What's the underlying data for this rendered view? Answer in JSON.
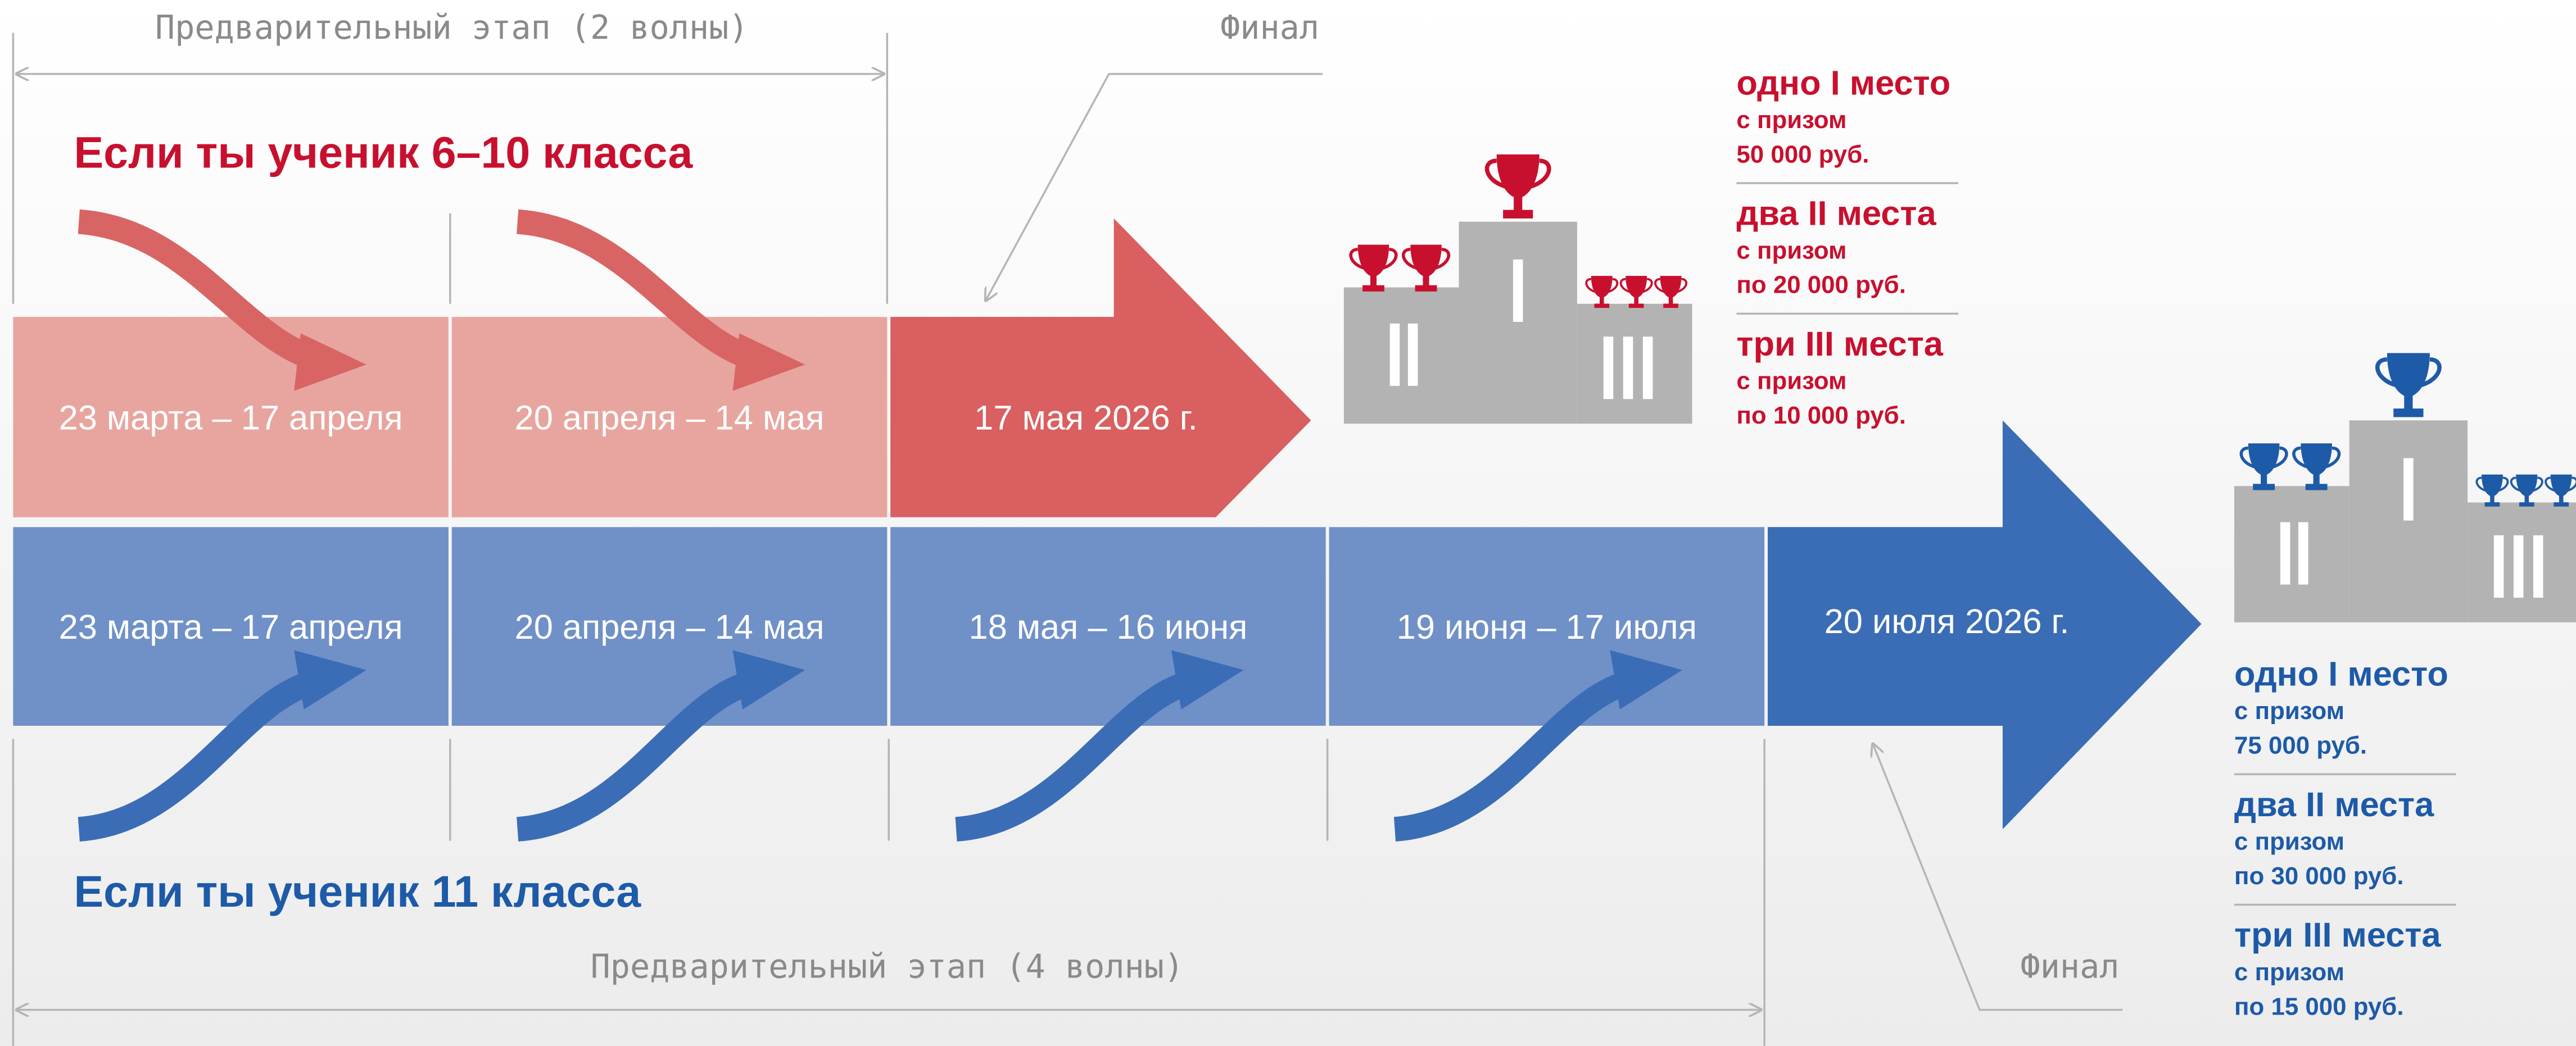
{
  "top_stage": {
    "label": "Предварительный этап (2 волны)",
    "final_label": "Финал"
  },
  "junior": {
    "heading": "Если ты ученик 6–10 класса",
    "waves": [
      "23 марта – 17 апреля",
      "20 апреля – 14 мая"
    ],
    "final_date": "17 мая 2026 г.",
    "prizes": [
      {
        "title": "одно I место",
        "lines": [
          "с призом",
          "50 000 руб."
        ]
      },
      {
        "title": "два II места",
        "lines": [
          "с призом",
          "по 20 000 руб."
        ]
      },
      {
        "title": "три III места",
        "lines": [
          "с призом",
          "по 10 000 руб."
        ]
      }
    ]
  },
  "senior": {
    "heading": "Если ты ученик 11 класса",
    "waves": [
      "23 марта – 17 апреля",
      "20 апреля – 14 мая",
      "18 мая – 16 июня",
      "19 июня – 17 июля"
    ],
    "final_date": "20 июля 2026 г.",
    "prizes": [
      {
        "title": "одно I место",
        "lines": [
          "с призом",
          "75 000 руб."
        ]
      },
      {
        "title": "два II места",
        "lines": [
          "с призом",
          "по 30 000 руб."
        ]
      },
      {
        "title": "три III места",
        "lines": [
          "с призом",
          "по 15 000 руб."
        ]
      }
    ]
  },
  "bottom_stage": {
    "label": "Предварительный этап (4 волны)",
    "final_label": "Финал"
  }
}
